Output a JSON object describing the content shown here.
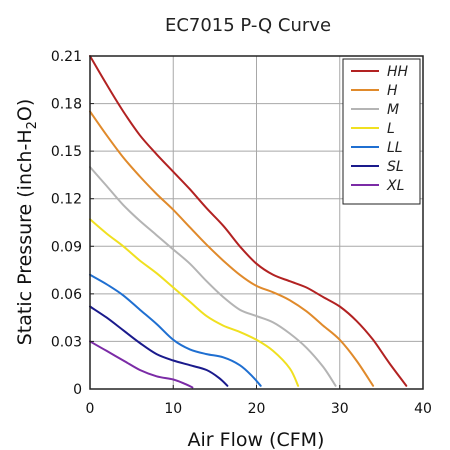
{
  "chart_data": {
    "type": "line",
    "title": "EC7015 P-Q Curve",
    "xlabel": "Air Flow (CFM)",
    "ylabel_main": "Static Pressure (inch-H",
    "ylabel_sub": "2",
    "ylabel_end": "O)",
    "xlim": [
      0,
      40
    ],
    "ylim": [
      0,
      0.21
    ],
    "xticks": [
      0,
      10,
      20,
      30,
      40
    ],
    "xtick_labels": [
      "0",
      "10",
      "20",
      "30",
      "40"
    ],
    "yticks": [
      0,
      0.03,
      0.06,
      0.09,
      0.12,
      0.15,
      0.18,
      0.21
    ],
    "ytick_labels": [
      "0",
      "0.03",
      "0.06",
      "0.09",
      "0.12",
      "0.15",
      "0.18",
      "0.21"
    ],
    "grid": true,
    "legend_position": "top-right",
    "series": [
      {
        "name": "HH",
        "color": "#b22222",
        "points": [
          [
            0,
            0.21
          ],
          [
            2,
            0.192
          ],
          [
            4,
            0.175
          ],
          [
            6,
            0.16
          ],
          [
            8,
            0.148
          ],
          [
            10,
            0.137
          ],
          [
            12,
            0.126
          ],
          [
            14,
            0.114
          ],
          [
            16,
            0.103
          ],
          [
            18,
            0.09
          ],
          [
            20,
            0.079
          ],
          [
            22,
            0.072
          ],
          [
            24,
            0.068
          ],
          [
            26,
            0.064
          ],
          [
            28,
            0.058
          ],
          [
            30,
            0.052
          ],
          [
            32,
            0.043
          ],
          [
            34,
            0.031
          ],
          [
            36,
            0.016
          ],
          [
            38,
            0.002
          ]
        ]
      },
      {
        "name": "H",
        "color": "#e08a2b",
        "points": [
          [
            0,
            0.175
          ],
          [
            2,
            0.16
          ],
          [
            4,
            0.146
          ],
          [
            6,
            0.134
          ],
          [
            8,
            0.123
          ],
          [
            10,
            0.113
          ],
          [
            12,
            0.102
          ],
          [
            14,
            0.091
          ],
          [
            16,
            0.081
          ],
          [
            18,
            0.072
          ],
          [
            20,
            0.065
          ],
          [
            22,
            0.061
          ],
          [
            24,
            0.056
          ],
          [
            26,
            0.049
          ],
          [
            28,
            0.04
          ],
          [
            30,
            0.031
          ],
          [
            32,
            0.018
          ],
          [
            34,
            0.002
          ]
        ]
      },
      {
        "name": "M",
        "color": "#b4b4b4",
        "points": [
          [
            0,
            0.14
          ],
          [
            2,
            0.128
          ],
          [
            4,
            0.116
          ],
          [
            6,
            0.106
          ],
          [
            8,
            0.097
          ],
          [
            10,
            0.088
          ],
          [
            12,
            0.079
          ],
          [
            14,
            0.068
          ],
          [
            16,
            0.058
          ],
          [
            18,
            0.05
          ],
          [
            20,
            0.046
          ],
          [
            22,
            0.042
          ],
          [
            24,
            0.035
          ],
          [
            26,
            0.026
          ],
          [
            28,
            0.014
          ],
          [
            29.5,
            0.002
          ]
        ]
      },
      {
        "name": "L",
        "color": "#f0e020",
        "points": [
          [
            0,
            0.107
          ],
          [
            2,
            0.098
          ],
          [
            4,
            0.09
          ],
          [
            6,
            0.081
          ],
          [
            8,
            0.073
          ],
          [
            10,
            0.064
          ],
          [
            12,
            0.055
          ],
          [
            14,
            0.046
          ],
          [
            16,
            0.04
          ],
          [
            18,
            0.036
          ],
          [
            20,
            0.031
          ],
          [
            22,
            0.024
          ],
          [
            24,
            0.013
          ],
          [
            25,
            0.002
          ]
        ]
      },
      {
        "name": "LL",
        "color": "#1f6fd1",
        "points": [
          [
            0,
            0.072
          ],
          [
            2,
            0.066
          ],
          [
            4,
            0.059
          ],
          [
            6,
            0.05
          ],
          [
            8,
            0.041
          ],
          [
            10,
            0.031
          ],
          [
            12,
            0.025
          ],
          [
            14,
            0.022
          ],
          [
            16,
            0.02
          ],
          [
            18,
            0.015
          ],
          [
            19.5,
            0.008
          ],
          [
            20.5,
            0.002
          ]
        ]
      },
      {
        "name": "SL",
        "color": "#1a1a8c",
        "points": [
          [
            0,
            0.052
          ],
          [
            2,
            0.045
          ],
          [
            4,
            0.037
          ],
          [
            6,
            0.029
          ],
          [
            8,
            0.022
          ],
          [
            10,
            0.018
          ],
          [
            12,
            0.015
          ],
          [
            14,
            0.012
          ],
          [
            15.5,
            0.007
          ],
          [
            16.5,
            0.002
          ]
        ]
      },
      {
        "name": "XL",
        "color": "#7b2ba6",
        "points": [
          [
            0,
            0.03
          ],
          [
            2,
            0.024
          ],
          [
            4,
            0.018
          ],
          [
            6,
            0.012
          ],
          [
            8,
            0.008
          ],
          [
            10,
            0.006
          ],
          [
            11.5,
            0.003
          ],
          [
            12.3,
            0.001
          ]
        ]
      }
    ]
  }
}
